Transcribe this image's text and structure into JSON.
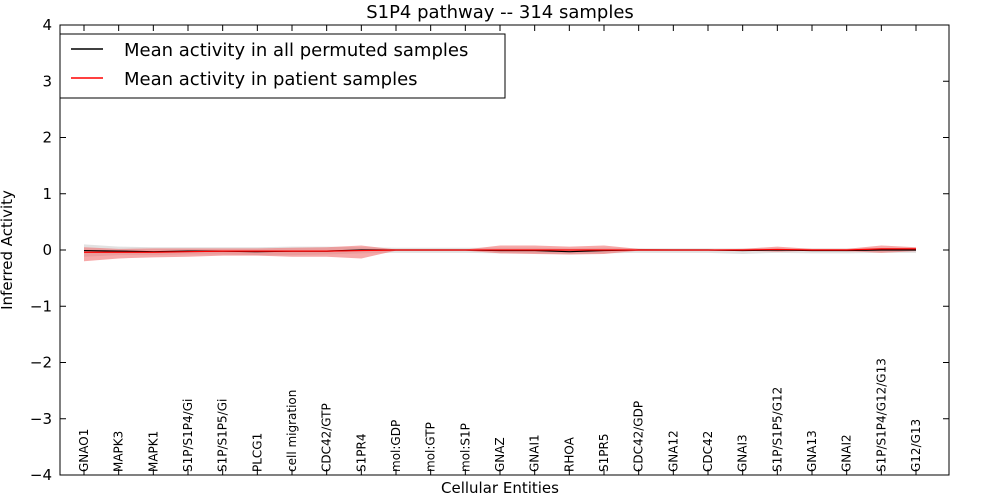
{
  "chart_data": {
    "type": "line",
    "title": "S1P4 pathway -- 314 samples",
    "xlabel": "Cellular Entities",
    "ylabel": "Inferred Activity",
    "ylim": [
      -4,
      4
    ],
    "yticks": [
      4,
      3,
      2,
      1,
      0,
      -1,
      -2,
      -3,
      -4
    ],
    "ytick_labels": [
      "4",
      "3",
      "2",
      "1",
      "0",
      "−1",
      "−2",
      "−3",
      "−4"
    ],
    "categories": [
      "GNAO1",
      "MAPK3",
      "MAPK1",
      "S1P/S1P4/Gi",
      "S1P/S1P5/Gi",
      "PLCG1",
      "cell migration",
      "CDC42/GTP",
      "S1PR4",
      "mol:GDP",
      "mol:GTP",
      "mol:S1P",
      "GNAZ",
      "GNAI1",
      "RHOA",
      "S1PR5",
      "CDC42/GDP",
      "GNA12",
      "CDC42",
      "GNAI3",
      "S1P/S1P5/G12",
      "GNA13",
      "GNAI2",
      "S1P/S1P4/G12/G13",
      "G12/G13"
    ],
    "legend_position": "top-left",
    "series": [
      {
        "name": "Mean activity in all permuted samples",
        "color": "#000000",
        "band_color": "#c8c8c8",
        "values": [
          -0.01,
          -0.02,
          -0.03,
          -0.02,
          -0.02,
          -0.03,
          -0.02,
          -0.02,
          0.0,
          0.0,
          0.0,
          0.0,
          -0.01,
          -0.01,
          -0.03,
          -0.01,
          0.0,
          0.0,
          0.0,
          -0.01,
          0.0,
          -0.01,
          -0.01,
          0.0,
          0.0
        ],
        "band_upper": [
          0.1,
          0.06,
          0.05,
          0.05,
          0.05,
          0.05,
          0.06,
          0.06,
          0.05,
          0.04,
          0.04,
          0.04,
          0.04,
          0.04,
          0.03,
          0.04,
          0.03,
          0.03,
          0.03,
          0.03,
          0.03,
          0.03,
          0.03,
          0.03,
          0.04
        ],
        "band_lower": [
          -0.12,
          -0.09,
          -0.09,
          -0.08,
          -0.08,
          -0.09,
          -0.09,
          -0.08,
          -0.06,
          -0.05,
          -0.05,
          -0.05,
          -0.06,
          -0.06,
          -0.08,
          -0.06,
          -0.05,
          -0.05,
          -0.05,
          -0.07,
          -0.05,
          -0.06,
          -0.06,
          -0.05,
          -0.05
        ]
      },
      {
        "name": "Mean activity in patient samples",
        "color": "#ff0000",
        "band_color": "#f07070",
        "values": [
          -0.04,
          -0.04,
          -0.04,
          -0.03,
          -0.02,
          -0.02,
          -0.02,
          -0.02,
          -0.01,
          0.0,
          0.0,
          0.0,
          0.0,
          0.0,
          0.0,
          0.0,
          0.0,
          0.0,
          0.0,
          0.0,
          0.01,
          0.0,
          0.0,
          0.02,
          0.02
        ],
        "band_upper": [
          0.05,
          0.02,
          0.03,
          0.03,
          0.03,
          0.03,
          0.04,
          0.05,
          0.08,
          0.01,
          0.01,
          0.01,
          0.08,
          0.08,
          0.06,
          0.08,
          0.02,
          0.01,
          0.01,
          0.02,
          0.06,
          0.02,
          0.02,
          0.08,
          0.05
        ],
        "band_lower": [
          -0.2,
          -0.15,
          -0.13,
          -0.12,
          -0.1,
          -0.1,
          -0.12,
          -0.12,
          -0.15,
          -0.01,
          -0.01,
          -0.01,
          -0.06,
          -0.07,
          -0.08,
          -0.07,
          -0.01,
          -0.01,
          -0.01,
          -0.01,
          -0.03,
          -0.01,
          -0.02,
          -0.05,
          -0.02
        ]
      }
    ]
  }
}
